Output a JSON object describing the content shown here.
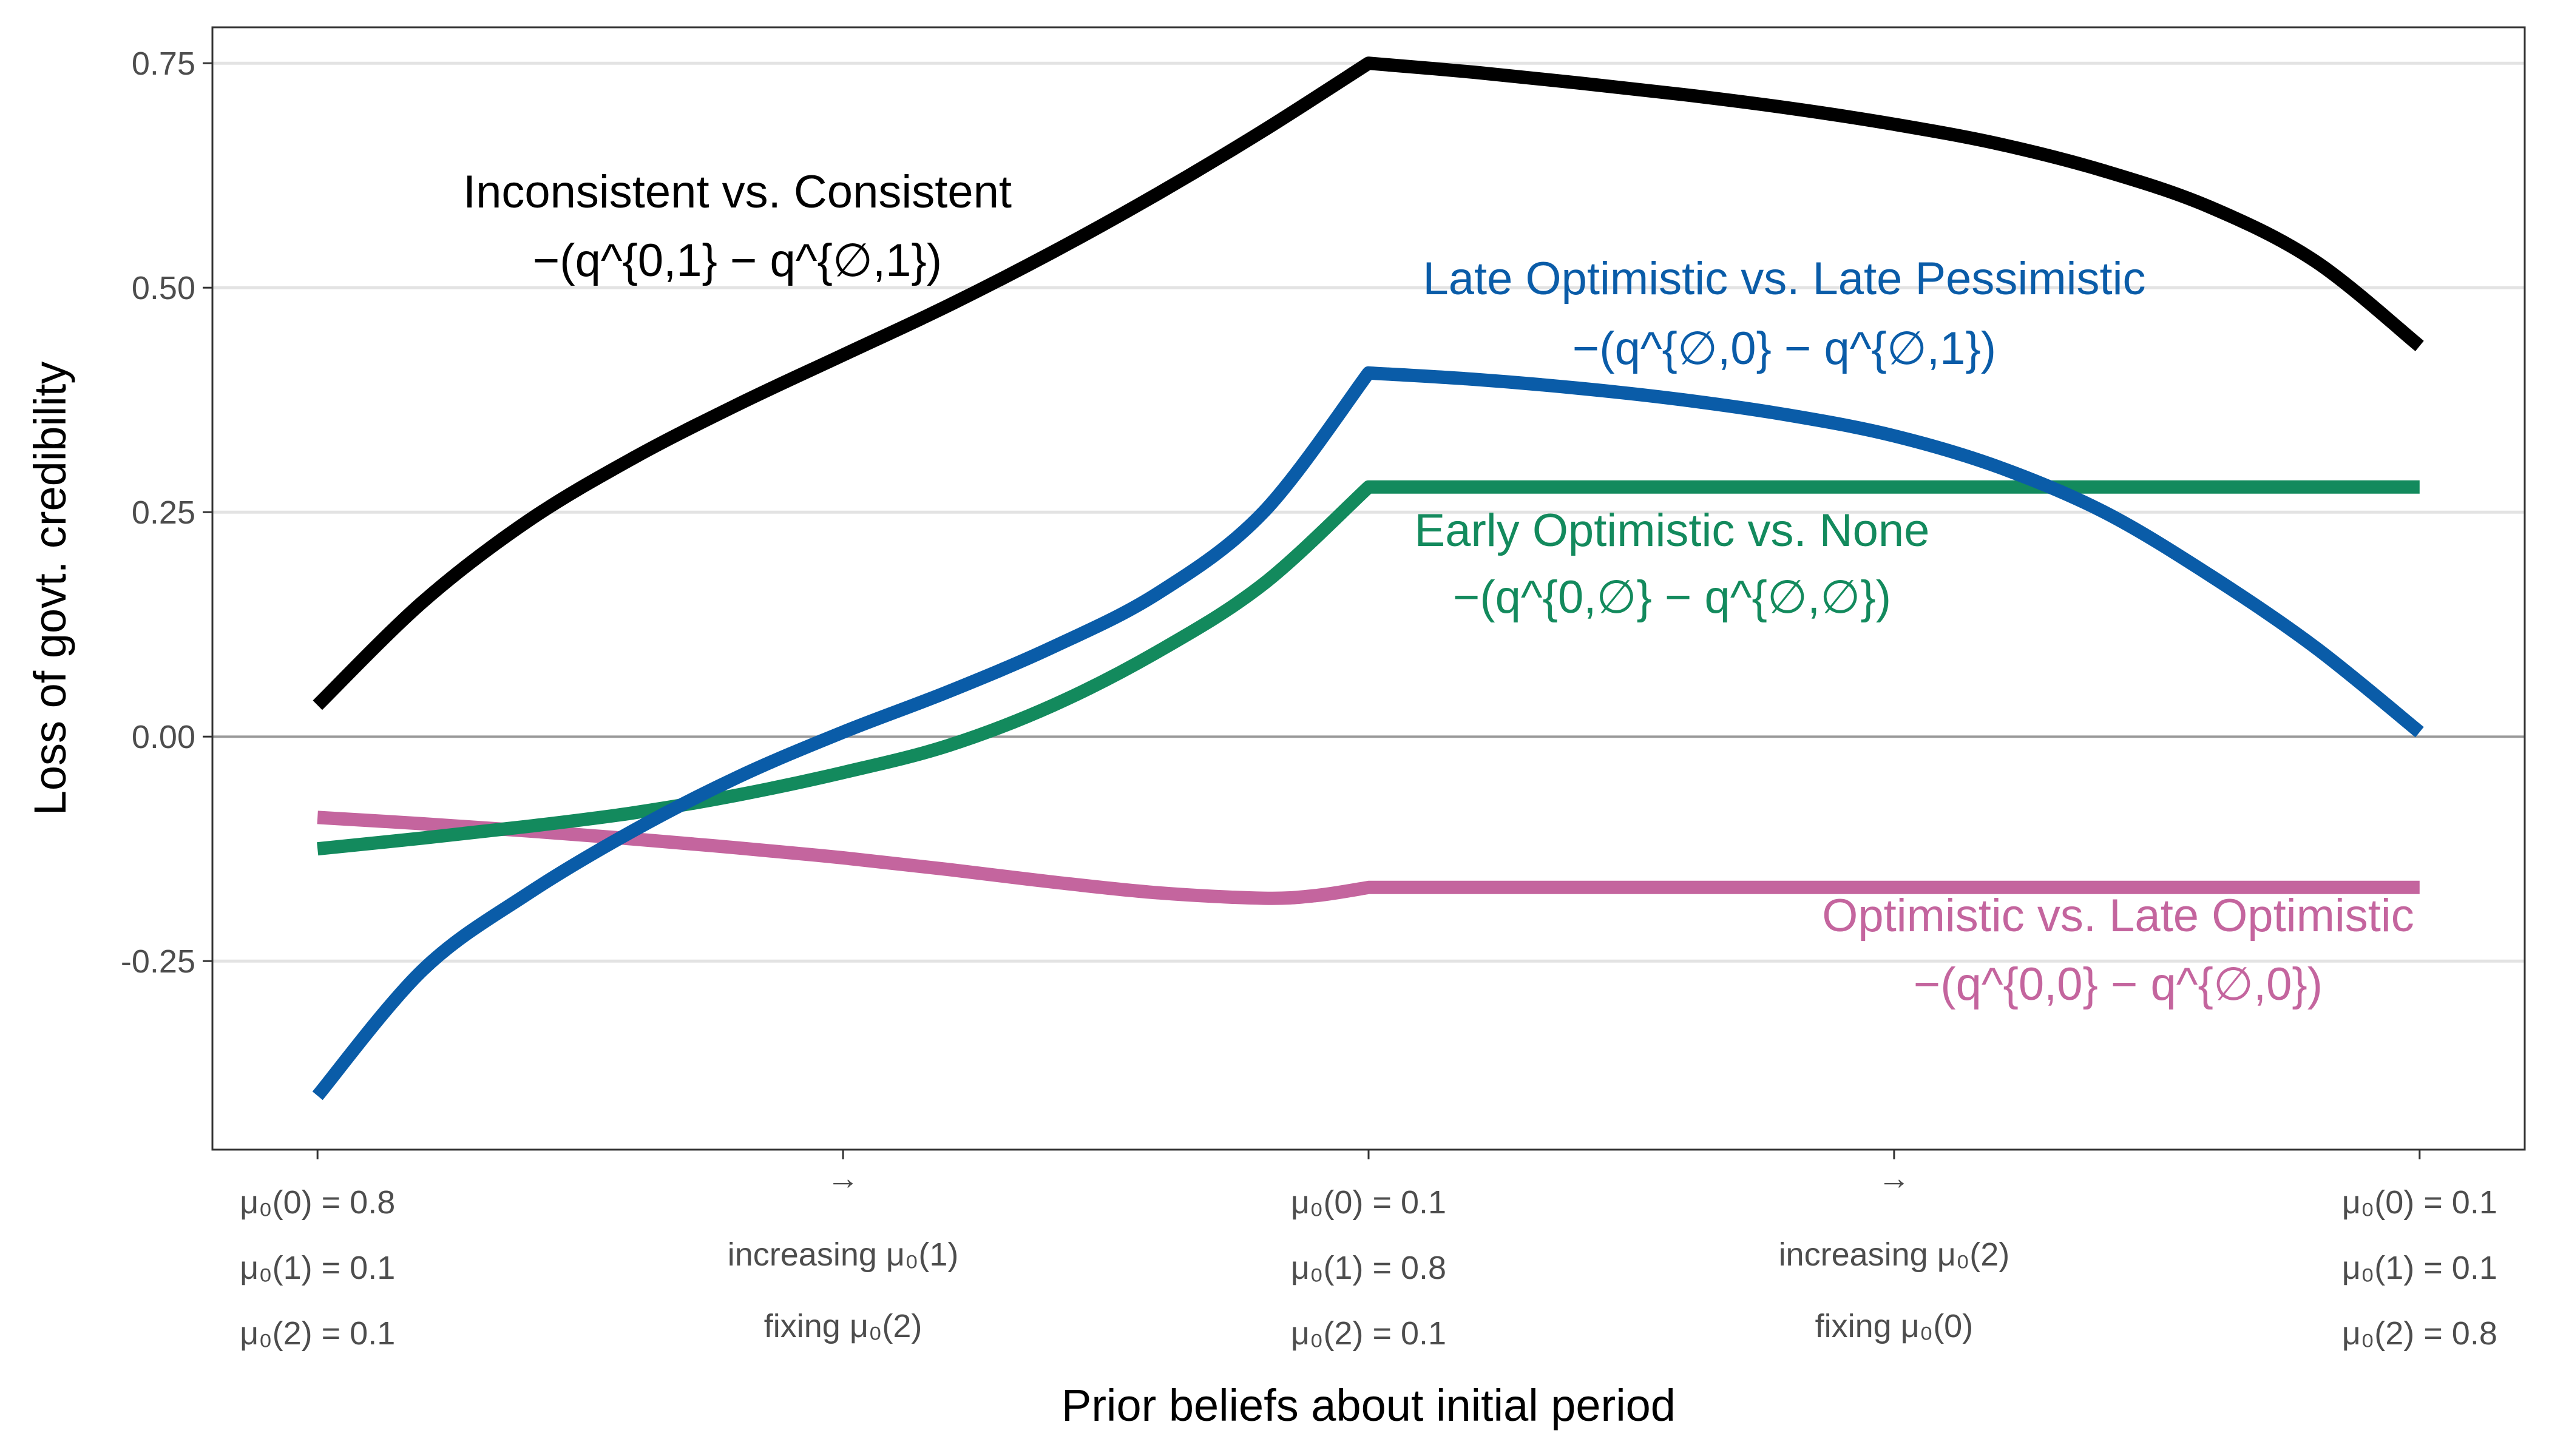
{
  "chart_data": {
    "type": "line",
    "xlabel": "Prior beliefs about initial period",
    "ylabel": "Loss of govt. credibility",
    "xlim": [
      -0.1,
      2.1
    ],
    "ylim": [
      -0.46,
      0.79
    ],
    "y_ticks": [
      {
        "value": 0.75,
        "label": "0.75"
      },
      {
        "value": 0.5,
        "label": "0.50"
      },
      {
        "value": 0.25,
        "label": "0.25"
      },
      {
        "value": 0.0,
        "label": "0.00"
      },
      {
        "value": -0.25,
        "label": "-0.25"
      }
    ],
    "grid": "horizontal",
    "zero_line": true,
    "x_ticks": [
      {
        "x": 0,
        "lines": [
          "μ₀(0) = 0.8",
          "μ₀(1) = 0.1",
          "μ₀(2) = 0.1"
        ]
      },
      {
        "x": 0.5,
        "lines": [
          "→",
          "increasing μ₀(1)",
          "fixing μ₀(2)"
        ]
      },
      {
        "x": 1,
        "lines": [
          "μ₀(0) = 0.1",
          "μ₀(1) = 0.8",
          "μ₀(2) = 0.1"
        ]
      },
      {
        "x": 1.5,
        "lines": [
          "→",
          "increasing μ₀(2)",
          "fixing μ₀(0)"
        ]
      },
      {
        "x": 2,
        "lines": [
          "μ₀(0) = 0.1",
          "μ₀(1) = 0.1",
          "μ₀(2) = 0.8"
        ]
      }
    ],
    "series": [
      {
        "name": "Inconsistent vs. Consistent",
        "formula": "−(q^{0,1} − q^{∅,1})",
        "color": "#000000",
        "x": [
          0,
          0.1,
          0.2,
          0.3,
          0.4,
          0.5,
          0.6,
          0.7,
          0.8,
          0.9,
          1.0,
          1.1,
          1.2,
          1.3,
          1.4,
          1.5,
          1.6,
          1.7,
          1.8,
          1.9,
          2.0
        ],
        "y": [
          0.035,
          0.15,
          0.24,
          0.31,
          0.37,
          0.425,
          0.48,
          0.54,
          0.605,
          0.675,
          0.75,
          0.74,
          0.728,
          0.715,
          0.7,
          0.682,
          0.66,
          0.63,
          0.59,
          0.53,
          0.435
        ]
      },
      {
        "name": "Late Optimistic vs. Late Pessimistic",
        "formula": "−(q^{∅,0} − q^{∅,1})",
        "color": "#0a5ca8",
        "x": [
          0,
          0.1,
          0.2,
          0.3,
          0.4,
          0.5,
          0.6,
          0.7,
          0.8,
          0.9,
          1.0,
          1.1,
          1.2,
          1.3,
          1.4,
          1.5,
          1.6,
          1.7,
          1.8,
          1.9,
          2.0
        ],
        "y": [
          -0.4,
          -0.26,
          -0.175,
          -0.105,
          -0.045,
          0.005,
          0.05,
          0.1,
          0.16,
          0.25,
          0.405,
          0.398,
          0.388,
          0.375,
          0.358,
          0.335,
          0.3,
          0.25,
          0.18,
          0.1,
          0.005
        ]
      },
      {
        "name": "Early Optimistic vs. None",
        "formula": "−(q^{0,∅} − q^{∅,∅})",
        "color": "#138a5d",
        "x": [
          0,
          0.1,
          0.2,
          0.3,
          0.4,
          0.5,
          0.6,
          0.7,
          0.8,
          0.9,
          1.0,
          1.1,
          1.2,
          1.3,
          1.4,
          1.5,
          1.6,
          1.7,
          1.8,
          1.9,
          2.0
        ],
        "y": [
          -0.125,
          -0.113,
          -0.1,
          -0.085,
          -0.065,
          -0.04,
          -0.01,
          0.035,
          0.095,
          0.17,
          0.278,
          0.278,
          0.278,
          0.278,
          0.278,
          0.278,
          0.278,
          0.278,
          0.278,
          0.278,
          0.278
        ]
      },
      {
        "name": "Optimistic vs. Late Optimistic",
        "formula": "−(q^{0,0} − q^{∅,0})",
        "color": "#c4659e",
        "x": [
          0,
          0.1,
          0.2,
          0.3,
          0.4,
          0.5,
          0.6,
          0.7,
          0.8,
          0.9,
          0.95,
          1.0,
          1.1,
          1.2,
          1.3,
          1.4,
          1.5,
          1.6,
          1.7,
          1.8,
          1.9,
          2.0
        ],
        "y": [
          -0.09,
          -0.097,
          -0.105,
          -0.114,
          -0.124,
          -0.135,
          -0.148,
          -0.162,
          -0.174,
          -0.18,
          -0.177,
          -0.168,
          -0.168,
          -0.168,
          -0.168,
          -0.168,
          -0.168,
          -0.168,
          -0.168,
          -0.168,
          -0.168,
          -0.168
        ]
      }
    ]
  }
}
